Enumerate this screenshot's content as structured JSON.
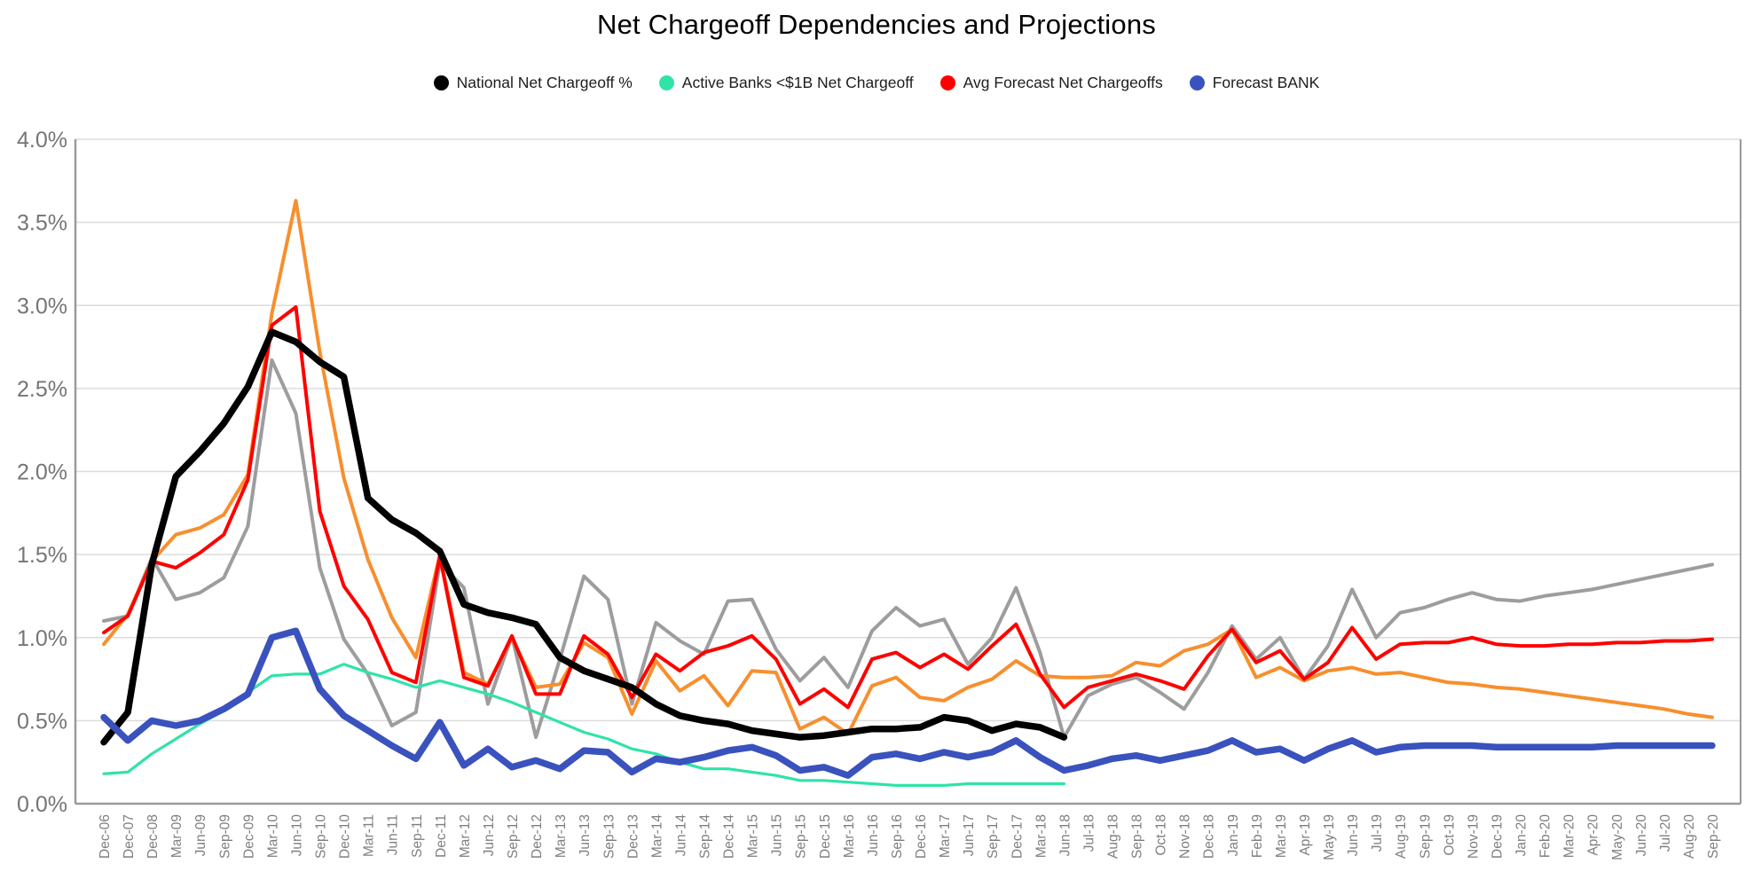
{
  "title": "Net Chargeoff Dependencies and Projections",
  "legend": [
    {
      "label": "National Net Chargeoff %",
      "color": "#000000",
      "series": "national"
    },
    {
      "label": "Active Banks <$1B Net Chargeoff",
      "color": "#2fe3a9",
      "series": "active-banks"
    },
    {
      "label": "Avg Forecast Net Chargeoffs",
      "color": "#ff0000",
      "series": "avg-forecast"
    },
    {
      "label": "Forecast BANK",
      "color": "#3a52bd",
      "series": "forecast-bank"
    }
  ],
  "axes": {
    "y_tick_labels": [
      "4.0%",
      "3.5%",
      "3.0%",
      "2.5%",
      "2.0%",
      "1.5%",
      "1.0%",
      "0.5%",
      "0.0%"
    ],
    "y_label_color": "#757575",
    "x_label_color": "#7f7f7f",
    "grid_color": "#dcdcdc",
    "axis_line_color": "#9a9a9a"
  },
  "chart_data": {
    "type": "line",
    "title": "Net Chargeoff Dependencies and Projections",
    "xlabel": "",
    "ylabel": "",
    "ylim": [
      0,
      4.0
    ],
    "ytick_step": 0.5,
    "ytick_format": "percent",
    "grid": "horizontal",
    "legend_position": "top-center",
    "x": [
      "Dec-06",
      "Dec-07",
      "Dec-08",
      "Mar-09",
      "Jun-09",
      "Sep-09",
      "Dec-09",
      "Mar-10",
      "Jun-10",
      "Sep-10",
      "Dec-10",
      "Mar-11",
      "Jun-11",
      "Sep-11",
      "Dec-11",
      "Mar-12",
      "Jun-12",
      "Sep-12",
      "Dec-12",
      "Mar-13",
      "Jun-13",
      "Sep-13",
      "Dec-13",
      "Mar-14",
      "Jun-14",
      "Sep-14",
      "Dec-14",
      "Mar-15",
      "Jun-15",
      "Sep-15",
      "Dec-15",
      "Mar-16",
      "Jun-16",
      "Sep-16",
      "Dec-16",
      "Mar-17",
      "Jun-17",
      "Sep-17",
      "Dec-17",
      "Mar-18",
      "Jun-18",
      "Jul-18",
      "Aug-18",
      "Sep-18",
      "Oct-18",
      "Nov-18",
      "Dec-18",
      "Jan-19",
      "Feb-19",
      "Mar-19",
      "Apr-19",
      "May-19",
      "Jun-19",
      "Jul-19",
      "Aug-19",
      "Sep-19",
      "Oct-19",
      "Nov-19",
      "Dec-19",
      "Jan-20",
      "Feb-20",
      "Mar-20",
      "Apr-20",
      "May-20",
      "Jun-20",
      "Jul-20",
      "Aug-20",
      "Sep-20"
    ],
    "series": [
      {
        "id": "gray-line",
        "name": "",
        "in_legend": false,
        "color": "#9d9d9d",
        "width": 4,
        "values": [
          1.1,
          1.13,
          1.48,
          1.23,
          1.27,
          1.36,
          1.67,
          2.67,
          2.35,
          1.42,
          0.99,
          0.78,
          0.47,
          0.55,
          1.45,
          1.3,
          0.6,
          1.01,
          0.4,
          0.87,
          1.37,
          1.23,
          0.6,
          1.09,
          0.98,
          0.9,
          1.22,
          1.23,
          0.93,
          0.74,
          0.88,
          0.7,
          1.04,
          1.18,
          1.07,
          1.11,
          0.84,
          1.0,
          1.3,
          0.91,
          0.4,
          0.65,
          0.72,
          0.76,
          0.67,
          0.57,
          0.79,
          1.07,
          0.87,
          1.0,
          0.75,
          0.95,
          1.29,
          1.0,
          1.15,
          1.18,
          1.23,
          1.27,
          1.23,
          1.22,
          1.25,
          1.27,
          1.29,
          1.32,
          1.35,
          1.38,
          1.41,
          1.44
        ]
      },
      {
        "id": "orange-line",
        "name": "",
        "in_legend": false,
        "color": "#f78f2e",
        "width": 4,
        "values": [
          0.96,
          1.14,
          1.46,
          1.62,
          1.66,
          1.74,
          1.98,
          2.95,
          3.63,
          2.72,
          1.96,
          1.47,
          1.12,
          0.88,
          1.5,
          0.79,
          0.72,
          1.0,
          0.7,
          0.72,
          0.97,
          0.88,
          0.54,
          0.86,
          0.68,
          0.77,
          0.59,
          0.8,
          0.79,
          0.45,
          0.52,
          0.42,
          0.71,
          0.76,
          0.64,
          0.62,
          0.7,
          0.75,
          0.86,
          0.77,
          0.76,
          0.76,
          0.77,
          0.85,
          0.83,
          0.92,
          0.96,
          1.05,
          0.76,
          0.82,
          0.74,
          0.8,
          0.82,
          0.78,
          0.79,
          0.76,
          0.73,
          0.72,
          0.7,
          0.69,
          0.67,
          0.65,
          0.63,
          0.61,
          0.59,
          0.57,
          0.54,
          0.52
        ]
      },
      {
        "id": "avg-forecast",
        "name": "Avg Forecast Net Chargeoffs",
        "in_legend": true,
        "color": "#ff0000",
        "width": 4,
        "values": [
          1.03,
          1.13,
          1.46,
          1.42,
          1.51,
          1.62,
          1.95,
          2.88,
          2.99,
          1.76,
          1.31,
          1.11,
          0.79,
          0.73,
          1.49,
          0.76,
          0.71,
          1.01,
          0.66,
          0.66,
          1.01,
          0.9,
          0.64,
          0.9,
          0.8,
          0.91,
          0.95,
          1.01,
          0.87,
          0.6,
          0.69,
          0.58,
          0.87,
          0.91,
          0.82,
          0.9,
          0.81,
          0.95,
          1.08,
          0.78,
          0.58,
          0.7,
          0.74,
          0.78,
          0.74,
          0.69,
          0.89,
          1.05,
          0.85,
          0.92,
          0.75,
          0.85,
          1.06,
          0.87,
          0.96,
          0.97,
          0.97,
          1.0,
          0.96,
          0.95,
          0.95,
          0.96,
          0.96,
          0.97,
          0.97,
          0.98,
          0.98,
          0.99
        ]
      },
      {
        "id": "active-banks",
        "name": "Active Banks <$1B Net Chargeoff",
        "in_legend": true,
        "color": "#2fe3a9",
        "width": 3.2,
        "values": [
          0.18,
          0.19,
          0.3,
          0.39,
          0.48,
          0.56,
          0.67,
          0.77,
          0.78,
          0.78,
          0.84,
          0.79,
          0.75,
          0.7,
          0.74,
          0.7,
          0.66,
          0.61,
          0.55,
          0.49,
          0.43,
          0.39,
          0.33,
          0.3,
          0.25,
          0.21,
          0.21,
          0.19,
          0.17,
          0.14,
          0.14,
          0.13,
          0.12,
          0.11,
          0.11,
          0.11,
          0.12,
          0.12,
          0.12,
          0.12,
          0.12,
          null,
          null,
          null,
          null,
          null,
          null,
          null,
          null,
          null,
          null,
          null,
          null,
          null,
          null,
          null,
          null,
          null,
          null,
          null,
          null,
          null,
          null,
          null,
          null,
          null,
          null,
          null
        ]
      },
      {
        "id": "national",
        "name": "National Net Chargeoff %",
        "in_legend": true,
        "color": "#000000",
        "width": 7.5,
        "values": [
          0.37,
          0.55,
          1.44,
          1.97,
          2.12,
          2.29,
          2.51,
          2.84,
          2.78,
          2.66,
          2.57,
          1.84,
          1.71,
          1.63,
          1.52,
          1.2,
          1.15,
          1.12,
          1.08,
          0.88,
          0.8,
          0.75,
          0.7,
          0.6,
          0.53,
          0.5,
          0.48,
          0.44,
          0.42,
          0.4,
          0.41,
          0.43,
          0.45,
          0.45,
          0.46,
          0.52,
          0.5,
          0.44,
          0.48,
          0.46,
          0.4,
          null,
          null,
          null,
          null,
          null,
          null,
          null,
          null,
          null,
          null,
          null,
          null,
          null,
          null,
          null,
          null,
          null,
          null,
          null,
          null,
          null,
          null,
          null,
          null,
          null,
          null,
          null
        ]
      },
      {
        "id": "forecast-bank",
        "name": "Forecast BANK",
        "in_legend": true,
        "color": "#3a52bd",
        "width": 7.5,
        "values": [
          0.52,
          0.38,
          0.5,
          0.47,
          0.5,
          0.57,
          0.66,
          1.0,
          1.04,
          0.69,
          0.53,
          0.44,
          0.35,
          0.27,
          0.49,
          0.23,
          0.33,
          0.22,
          0.26,
          0.21,
          0.32,
          0.31,
          0.19,
          0.27,
          0.25,
          0.28,
          0.32,
          0.34,
          0.29,
          0.2,
          0.22,
          0.17,
          0.28,
          0.3,
          0.27,
          0.31,
          0.28,
          0.31,
          0.38,
          0.28,
          0.2,
          0.23,
          0.27,
          0.29,
          0.26,
          0.29,
          0.32,
          0.38,
          0.31,
          0.33,
          0.26,
          0.33,
          0.38,
          0.31,
          0.34,
          0.35,
          0.35,
          0.35,
          0.34,
          0.34,
          0.34,
          0.34,
          0.34,
          0.35,
          0.35,
          0.35,
          0.35,
          0.35
        ]
      }
    ]
  }
}
